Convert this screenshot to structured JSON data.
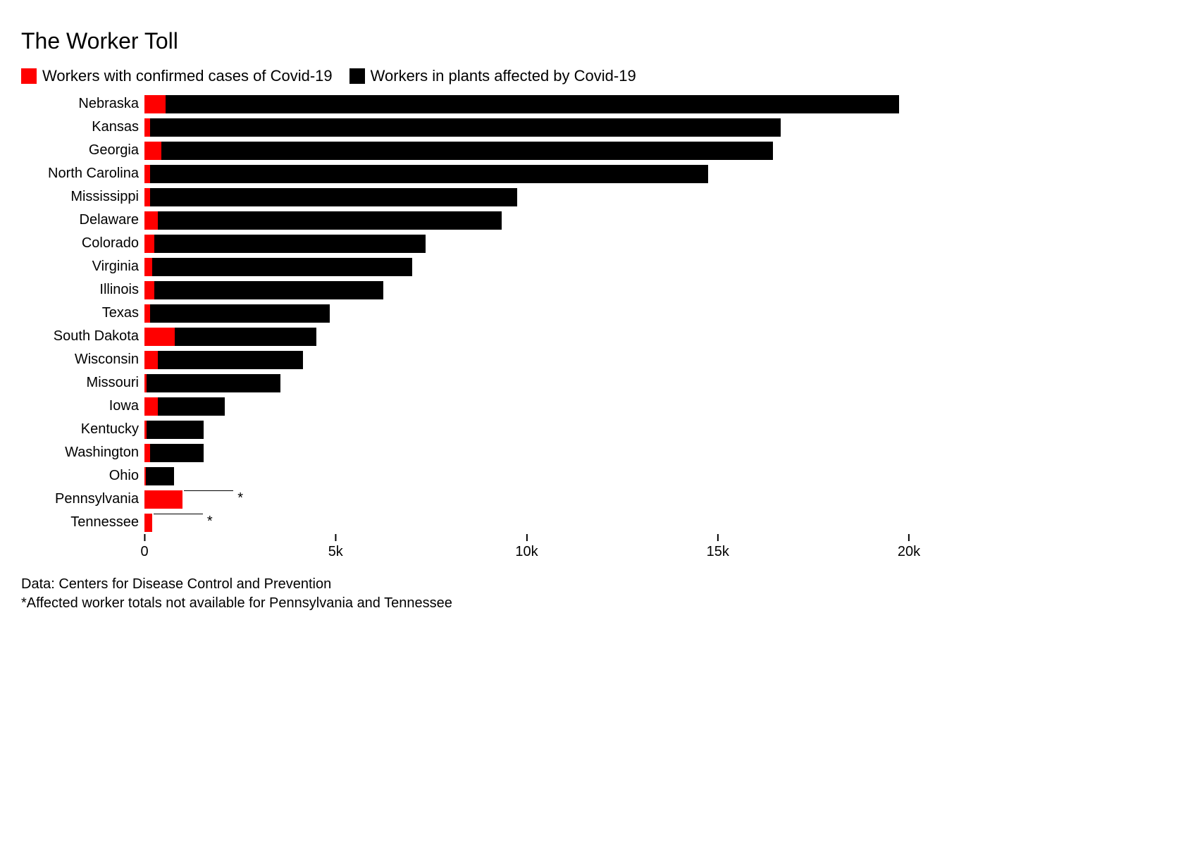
{
  "chart": {
    "type": "stacked-horizontal-bar",
    "title": "The Worker Toll",
    "background_color": "#ffffff",
    "title_fontsize": 32,
    "label_fontsize": 20,
    "legend_fontsize": 22,
    "tick_fontsize": 20,
    "footer_fontsize": 20,
    "colors": {
      "confirmed": "#ff0000",
      "affected": "#000000",
      "text": "#000000"
    },
    "legend": [
      {
        "label": "Workers with confirmed cases of Covid-19",
        "color": "#ff0000"
      },
      {
        "label": "Workers in plants affected by Covid-19",
        "color": "#000000"
      }
    ],
    "x_axis": {
      "min": 0,
      "max": 20000,
      "ticks": [
        {
          "value": 0,
          "label": "0"
        },
        {
          "value": 5000,
          "label": "5k"
        },
        {
          "value": 10000,
          "label": "10k"
        },
        {
          "value": 15000,
          "label": "15k"
        },
        {
          "value": 20000,
          "label": "20k"
        }
      ]
    },
    "rows": [
      {
        "label": "Nebraska",
        "confirmed": 550,
        "affected": 19200,
        "note": false
      },
      {
        "label": "Kansas",
        "confirmed": 150,
        "affected": 16500,
        "note": false
      },
      {
        "label": "Georgia",
        "confirmed": 450,
        "affected": 16000,
        "note": false
      },
      {
        "label": "North Carolina",
        "confirmed": 150,
        "affected": 14600,
        "note": false
      },
      {
        "label": "Mississippi",
        "confirmed": 150,
        "affected": 9600,
        "note": false
      },
      {
        "label": "Delaware",
        "confirmed": 350,
        "affected": 9000,
        "note": false
      },
      {
        "label": "Colorado",
        "confirmed": 250,
        "affected": 7100,
        "note": false
      },
      {
        "label": "Virginia",
        "confirmed": 200,
        "affected": 6800,
        "note": false
      },
      {
        "label": "Illinois",
        "confirmed": 250,
        "affected": 6000,
        "note": false
      },
      {
        "label": "Texas",
        "confirmed": 150,
        "affected": 4700,
        "note": false
      },
      {
        "label": "South Dakota",
        "confirmed": 800,
        "affected": 3700,
        "note": false
      },
      {
        "label": "Wisconsin",
        "confirmed": 350,
        "affected": 3800,
        "note": false
      },
      {
        "label": "Missouri",
        "confirmed": 50,
        "affected": 3500,
        "note": false
      },
      {
        "label": "Iowa",
        "confirmed": 350,
        "affected": 1750,
        "note": false
      },
      {
        "label": "Kentucky",
        "confirmed": 50,
        "affected": 1500,
        "note": false
      },
      {
        "label": "Washington",
        "confirmed": 150,
        "affected": 1400,
        "note": false
      },
      {
        "label": "Ohio",
        "confirmed": 30,
        "affected": 750,
        "note": false
      },
      {
        "label": "Pennsylvania",
        "confirmed": 1000,
        "affected": 0,
        "note": true
      },
      {
        "label": "Tennessee",
        "confirmed": 200,
        "affected": 0,
        "note": true
      }
    ],
    "footer": {
      "source": "Data: Centers for Disease Control and Prevention",
      "note": "*Affected worker totals not available for Pennsylvania and Tennessee"
    }
  }
}
